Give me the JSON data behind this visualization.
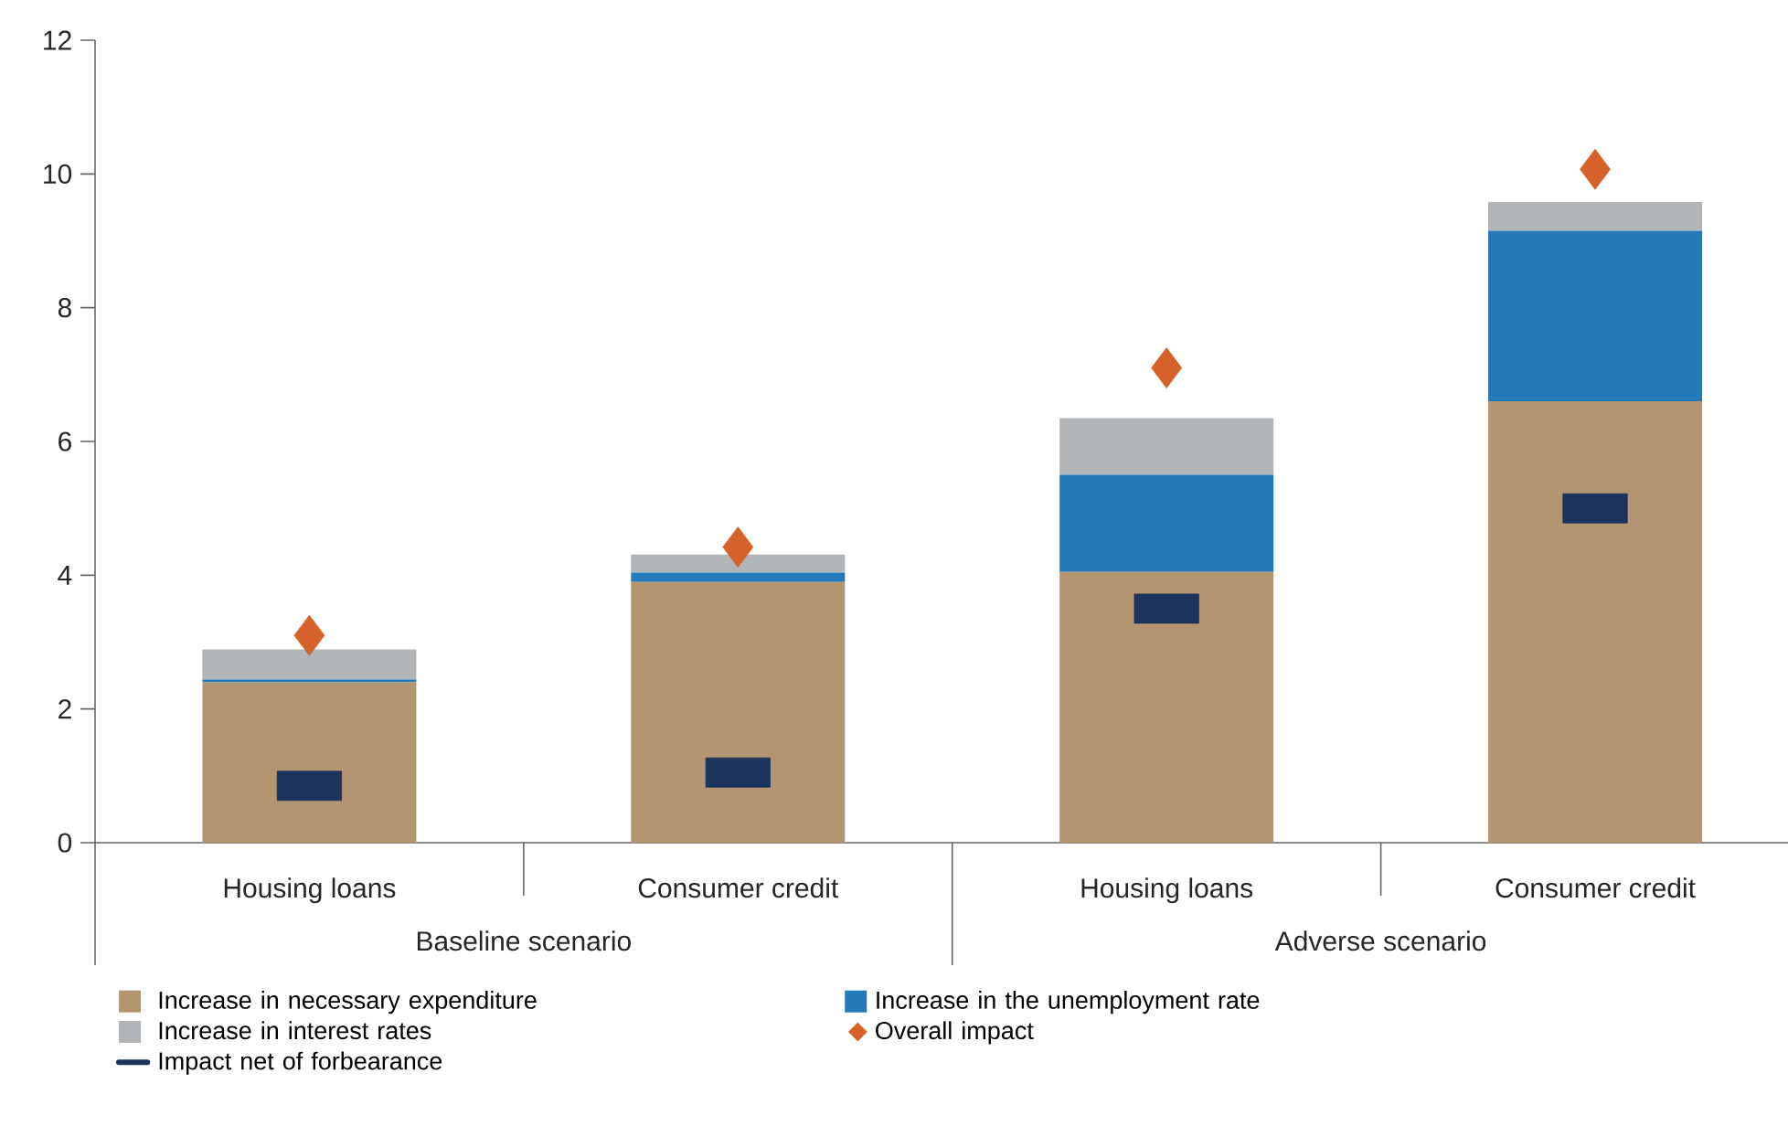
{
  "chart_data": {
    "type": "bar",
    "stacked": true,
    "categories": [
      "Housing loans",
      "Consumer credit",
      "Housing loans",
      "Consumer credit"
    ],
    "series": [
      {
        "name": "Increase in necessary expenditure",
        "color": "#b39572",
        "values": [
          2.4,
          3.9,
          4.05,
          6.6
        ]
      },
      {
        "name": "Increase in the unemployment rate",
        "color": "#2479b8",
        "values": [
          0.04,
          0.14,
          1.45,
          2.55
        ]
      },
      {
        "name": "Increase in interest rates",
        "color": "#b1b5b8",
        "values": [
          0.45,
          0.27,
          0.85,
          0.43
        ]
      },
      {
        "name": "Overall impact",
        "type": "scatter",
        "marker": "diamond",
        "color": "#d4622a",
        "values": [
          3.1,
          4.42,
          7.1,
          10.07
        ]
      },
      {
        "name": "Impact net of forbearance",
        "type": "scatter",
        "marker": "square",
        "color": "#1c345c",
        "values": [
          0.85,
          1.05,
          3.5,
          5.0
        ]
      }
    ],
    "annotations": [
      "Baseline scenario",
      "Adverse scenario"
    ],
    "ylim": [
      0,
      12
    ],
    "yticks": [
      0,
      2,
      4,
      6,
      8,
      10,
      12
    ],
    "grid": false,
    "legend": "bottom"
  }
}
